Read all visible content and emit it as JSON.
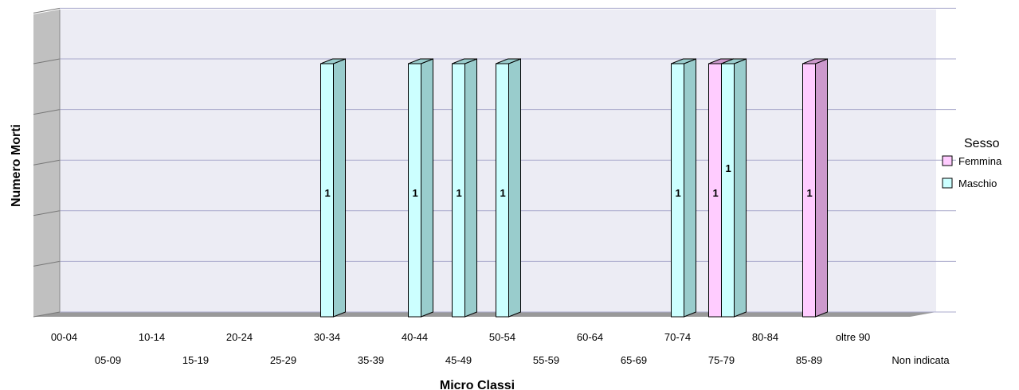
{
  "chart_data": {
    "type": "bar",
    "xlabel": "Micro Classi",
    "ylabel": "Numero Morti",
    "categories": [
      "00-04",
      "05-09",
      "10-14",
      "15-19",
      "20-24",
      "25-29",
      "30-34",
      "35-39",
      "40-44",
      "45-49",
      "50-54",
      "55-59",
      "60-64",
      "65-69",
      "70-74",
      "75-79",
      "80-84",
      "85-89",
      "oltre 90",
      "Non indicata"
    ],
    "series": [
      {
        "name": "Femmina",
        "values": [
          0,
          0,
          0,
          0,
          0,
          0,
          0,
          0,
          0,
          0,
          0,
          0,
          0,
          0,
          0,
          1,
          0,
          1,
          0,
          0
        ]
      },
      {
        "name": "Maschio",
        "values": [
          0,
          0,
          0,
          0,
          0,
          0,
          1,
          0,
          1,
          1,
          1,
          0,
          0,
          0,
          1,
          1,
          0,
          0,
          0,
          0
        ]
      }
    ],
    "ylim": [
      0,
      1.2
    ],
    "grid": true,
    "three_d": true,
    "data_labels": true,
    "legend": {
      "title": "Sesso",
      "position": "right"
    },
    "colors": {
      "Femmina": {
        "front": "#ffccff",
        "side": "#cc99cc"
      },
      "Maschio": {
        "front": "#ccffff",
        "side": "#99cccc"
      },
      "wall": "#ececf4",
      "wall_side": "#c0c0c0",
      "floor": "#999999",
      "grid": "#aaaacc"
    }
  }
}
